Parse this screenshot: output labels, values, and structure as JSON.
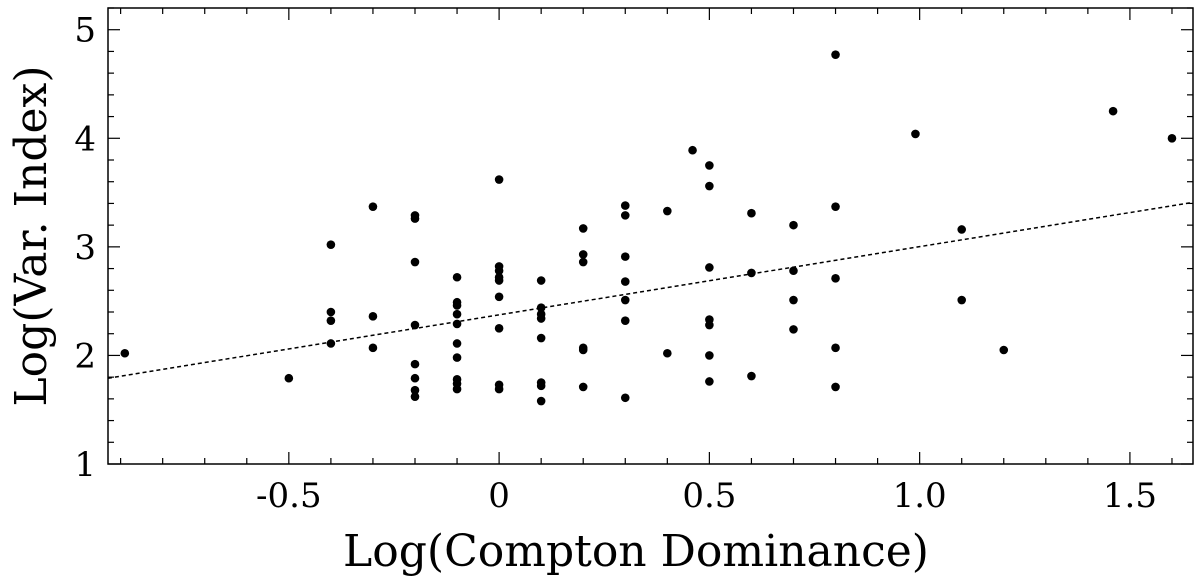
{
  "chart_data": {
    "type": "scatter",
    "title": "",
    "xlabel": "Log(Compton Dominance)",
    "ylabel": "Log(Var. Index)",
    "xlim": [
      -0.93,
      1.65
    ],
    "ylim": [
      1,
      5.2
    ],
    "x_ticks": [
      -0.5,
      0,
      0.5,
      1.0,
      1.5
    ],
    "x_tick_labels": [
      "-0.5",
      "0",
      "0.5",
      "1.0",
      "1.5"
    ],
    "y_ticks": [
      1,
      2,
      3,
      4,
      5
    ],
    "y_tick_labels": [
      "1",
      "2",
      "3",
      "4",
      "5"
    ],
    "grid": false,
    "series": [
      {
        "marker": "filled-circle",
        "color": "#000000",
        "points": [
          [
            -0.89,
            2.02
          ],
          [
            -0.5,
            1.79
          ],
          [
            -0.4,
            3.02
          ],
          [
            -0.4,
            2.4
          ],
          [
            -0.4,
            2.32
          ],
          [
            -0.4,
            2.11
          ],
          [
            -0.3,
            3.37
          ],
          [
            -0.3,
            2.36
          ],
          [
            -0.3,
            2.07
          ],
          [
            -0.2,
            3.29
          ],
          [
            -0.2,
            3.26
          ],
          [
            -0.2,
            2.86
          ],
          [
            -0.2,
            2.28
          ],
          [
            -0.2,
            1.92
          ],
          [
            -0.2,
            1.79
          ],
          [
            -0.2,
            1.68
          ],
          [
            -0.2,
            1.62
          ],
          [
            -0.1,
            2.72
          ],
          [
            -0.1,
            2.49
          ],
          [
            -0.1,
            2.46
          ],
          [
            -0.1,
            2.38
          ],
          [
            -0.1,
            2.29
          ],
          [
            -0.1,
            2.11
          ],
          [
            -0.1,
            1.98
          ],
          [
            -0.1,
            1.78
          ],
          [
            -0.1,
            1.74
          ],
          [
            -0.1,
            1.69
          ],
          [
            0.0,
            3.62
          ],
          [
            0.0,
            2.82
          ],
          [
            0.0,
            2.78
          ],
          [
            0.0,
            2.72
          ],
          [
            0.0,
            2.69
          ],
          [
            0.0,
            2.54
          ],
          [
            0.0,
            2.25
          ],
          [
            0.0,
            1.73
          ],
          [
            0.0,
            1.69
          ],
          [
            0.1,
            2.69
          ],
          [
            0.1,
            2.44
          ],
          [
            0.1,
            2.38
          ],
          [
            0.1,
            2.34
          ],
          [
            0.1,
            2.16
          ],
          [
            0.1,
            1.75
          ],
          [
            0.1,
            1.72
          ],
          [
            0.1,
            1.58
          ],
          [
            0.2,
            3.17
          ],
          [
            0.2,
            2.93
          ],
          [
            0.2,
            2.86
          ],
          [
            0.2,
            2.07
          ],
          [
            0.2,
            2.05
          ],
          [
            0.2,
            1.71
          ],
          [
            0.3,
            3.38
          ],
          [
            0.3,
            3.29
          ],
          [
            0.3,
            2.91
          ],
          [
            0.3,
            2.68
          ],
          [
            0.3,
            2.51
          ],
          [
            0.3,
            2.32
          ],
          [
            0.3,
            1.61
          ],
          [
            0.4,
            3.33
          ],
          [
            0.4,
            2.02
          ],
          [
            0.46,
            3.89
          ],
          [
            0.5,
            3.75
          ],
          [
            0.5,
            3.56
          ],
          [
            0.5,
            2.81
          ],
          [
            0.5,
            2.33
          ],
          [
            0.5,
            2.28
          ],
          [
            0.5,
            2.0
          ],
          [
            0.5,
            1.76
          ],
          [
            0.6,
            3.31
          ],
          [
            0.6,
            2.76
          ],
          [
            0.6,
            1.81
          ],
          [
            0.7,
            3.2
          ],
          [
            0.7,
            2.78
          ],
          [
            0.7,
            2.51
          ],
          [
            0.7,
            2.24
          ],
          [
            0.8,
            4.77
          ],
          [
            0.8,
            3.37
          ],
          [
            0.8,
            2.71
          ],
          [
            0.8,
            2.07
          ],
          [
            0.8,
            1.71
          ],
          [
            0.99,
            4.04
          ],
          [
            1.1,
            3.16
          ],
          [
            1.1,
            2.51
          ],
          [
            1.2,
            2.05
          ],
          [
            1.46,
            4.25
          ],
          [
            1.6,
            4.0
          ]
        ]
      }
    ],
    "fit_line": {
      "style": "dashed",
      "color": "#000000",
      "points": [
        [
          -0.93,
          1.79
        ],
        [
          1.65,
          3.41
        ]
      ]
    }
  }
}
